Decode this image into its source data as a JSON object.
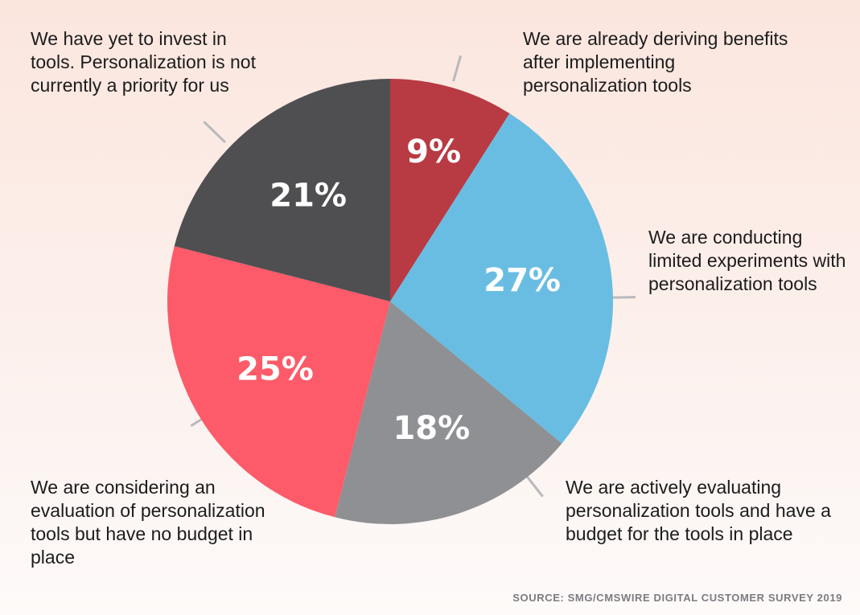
{
  "chart_data": {
    "type": "pie",
    "categories": [
      "We are already deriving benefits after implementing personalization tools",
      "We are conducting limited experiments with personalization tools",
      "We are actively evaluating personalization tools and have a budget for the tools in place",
      "We are considering an evaluation of personalization tools but have no budget in place",
      "We have yet to invest in tools. Personalization is not currently a priority for us"
    ],
    "values": [
      9,
      27,
      18,
      25,
      21
    ],
    "value_labels": [
      "9%",
      "27%",
      "18%",
      "25%",
      "21%"
    ],
    "colors": [
      "#b83a43",
      "#69bde2",
      "#8e9094",
      "#fd5b69",
      "#4f4f51"
    ],
    "start_angle": "12 o'clock",
    "direction": "clockwise",
    "source": "SOURCE: SMG/CMSWIRE DIGITAL CUSTOMER SURVEY 2019"
  },
  "colors": {
    "label_text": "#1c1c1c",
    "value_text": "#ffffff",
    "leader_line": "#b9b9bd",
    "source_text": "#7b7b82"
  }
}
